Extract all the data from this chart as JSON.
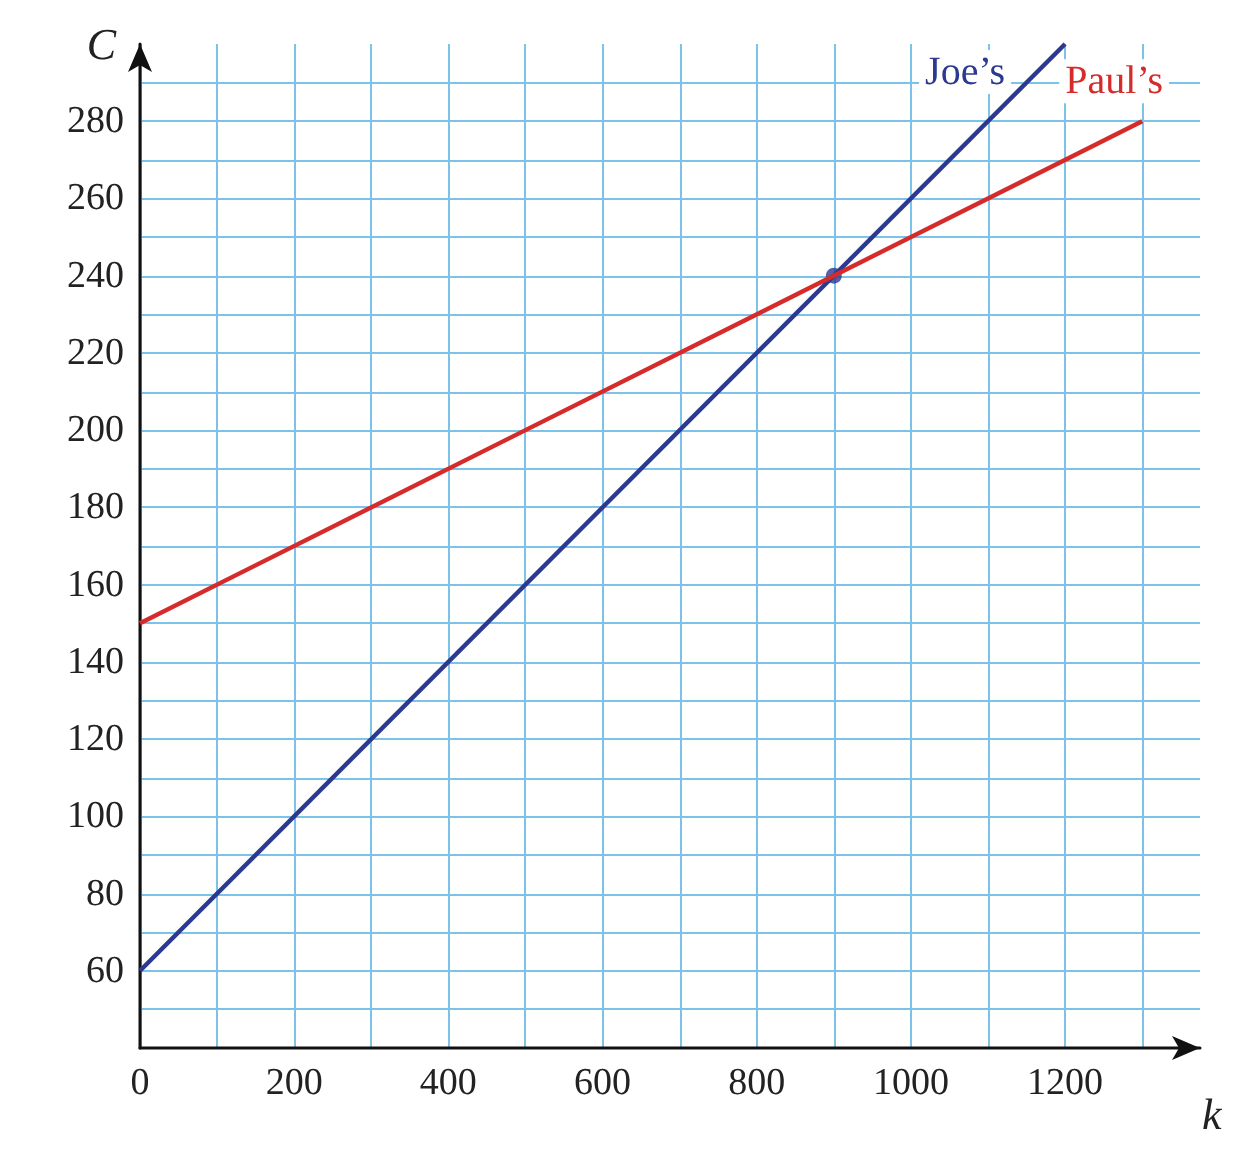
{
  "chart_data": {
    "type": "line",
    "xlabel": "k",
    "ylabel": "C",
    "xlim": [
      0,
      1375
    ],
    "ylim": [
      40,
      300
    ],
    "xticks": [
      0,
      {
        "value": 100,
        "label": null
      },
      200,
      {
        "value": 300,
        "label": null
      },
      400,
      {
        "value": 500,
        "label": null
      },
      600,
      {
        "value": 700,
        "label": null
      },
      800,
      {
        "value": 900,
        "label": null
      },
      1000,
      {
        "value": 1100,
        "label": null
      },
      1200,
      {
        "value": 1300,
        "label": null
      }
    ],
    "yticks": [
      {
        "value": 50,
        "label": null
      },
      60,
      {
        "value": 70,
        "label": null
      },
      80,
      {
        "value": 90,
        "label": null
      },
      100,
      {
        "value": 110,
        "label": null
      },
      120,
      {
        "value": 130,
        "label": null
      },
      140,
      {
        "value": 150,
        "label": null
      },
      160,
      {
        "value": 170,
        "label": null
      },
      180,
      {
        "value": 190,
        "label": null
      },
      200,
      {
        "value": 210,
        "label": null
      },
      220,
      {
        "value": 230,
        "label": null
      },
      240,
      {
        "value": 250,
        "label": null
      },
      260,
      {
        "value": 270,
        "label": null
      },
      280,
      {
        "value": 290,
        "label": null
      }
    ],
    "grid": true,
    "legend": false,
    "line_style": "solid",
    "marker": "none",
    "series": [
      {
        "name": "Joe’s",
        "color": "#2b3990",
        "x": [
          0,
          1200
        ],
        "values": [
          60,
          300
        ]
      },
      {
        "name": "Paul’s",
        "color": "#d62b2b",
        "x": [
          0,
          1300
        ],
        "values": [
          150,
          280
        ]
      },
      {
        "type": "scatter",
        "color": "#2b3990",
        "marker": "circle",
        "x": [
          900
        ],
        "values": [
          240
        ]
      }
    ]
  }
}
